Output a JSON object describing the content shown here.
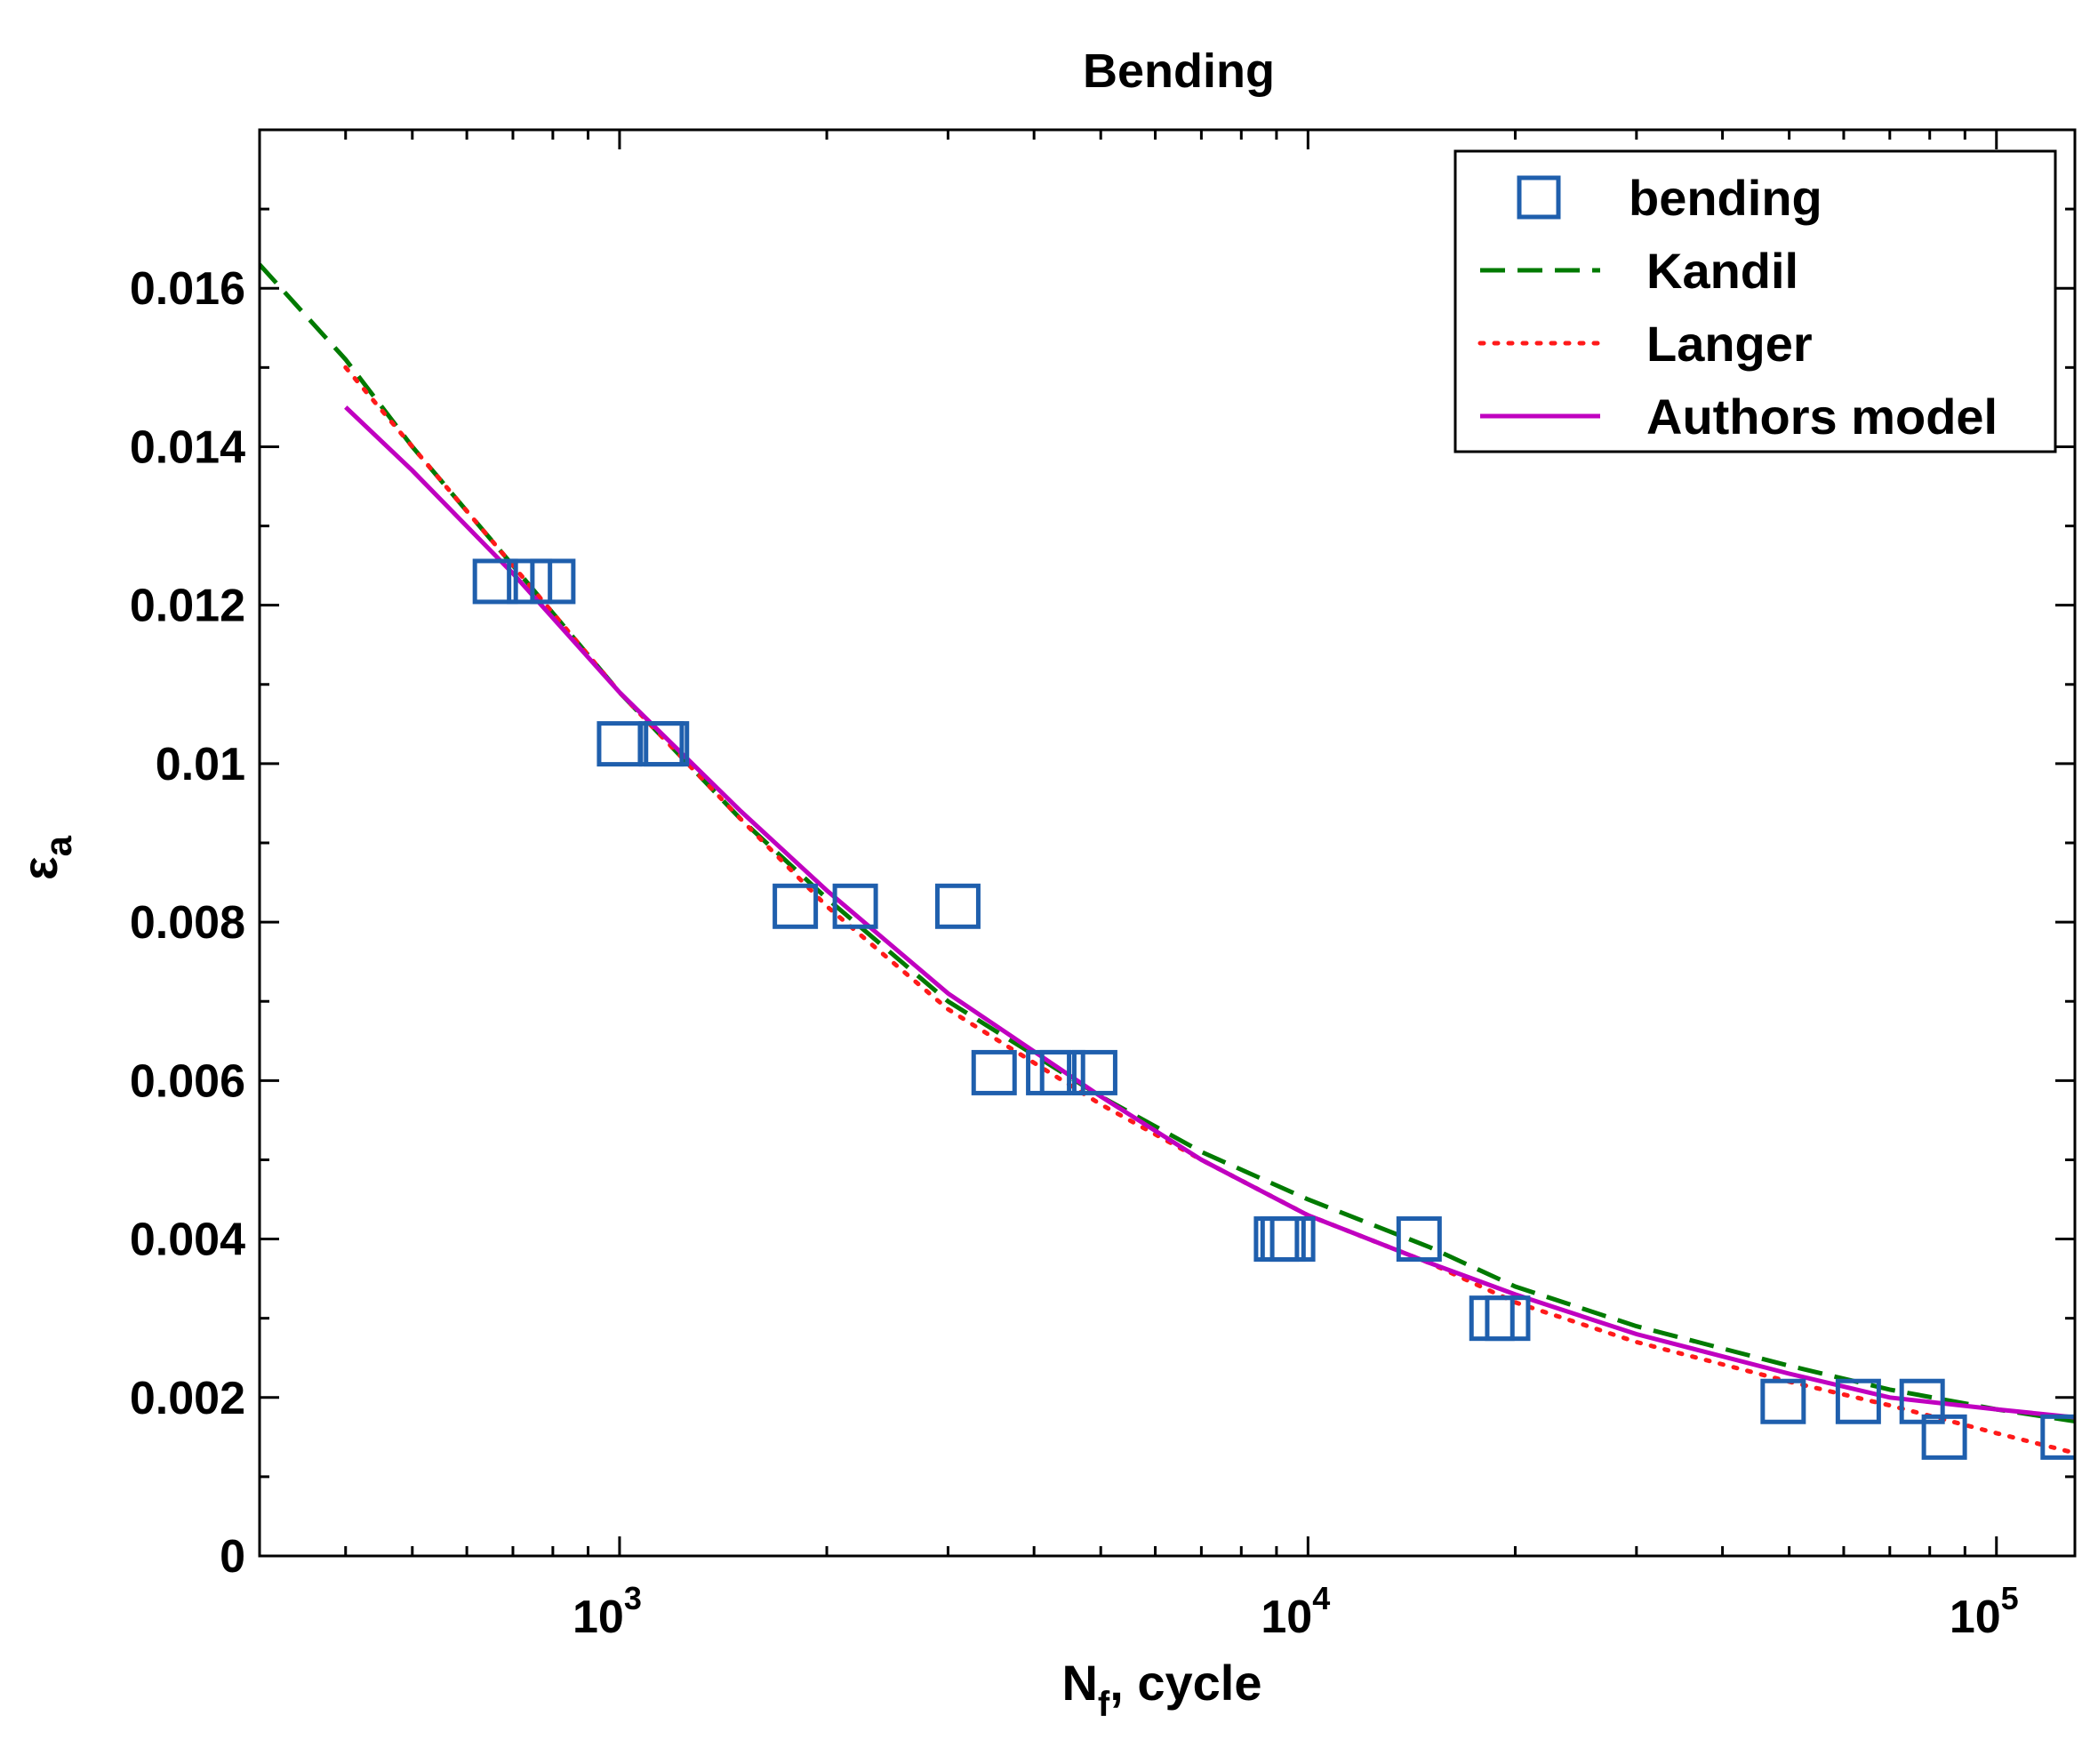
{
  "chart_data": {
    "type": "scatter",
    "title": "Bending",
    "xlabel": "N",
    "xlabel_sub": "f",
    "xlabel_rest": ", cycle",
    "ylabel": "ε",
    "ylabel_sub": "a",
    "xscale": "log",
    "xlim": [
      300,
      130000
    ],
    "ylim": [
      0,
      0.018
    ],
    "x_ticks": [
      {
        "value": 1000,
        "base": "10",
        "exp": "3"
      },
      {
        "value": 10000,
        "base": "10",
        "exp": "4"
      },
      {
        "value": 100000,
        "base": "10",
        "exp": "5"
      }
    ],
    "y_ticks": [
      {
        "value": 0,
        "label": "0"
      },
      {
        "value": 0.002,
        "label": "0.002"
      },
      {
        "value": 0.004,
        "label": "0.004"
      },
      {
        "value": 0.006,
        "label": "0.006"
      },
      {
        "value": 0.008,
        "label": "0.008"
      },
      {
        "value": 0.01,
        "label": "0.01"
      },
      {
        "value": 0.012,
        "label": "0.012"
      },
      {
        "value": 0.014,
        "label": "0.014"
      },
      {
        "value": 0.016,
        "label": "0.016"
      }
    ],
    "legend_position": "top-right",
    "series": [
      {
        "name": "bending",
        "kind": "marker",
        "marker": "square",
        "color": "#1f5fad",
        "points": [
          {
            "x": 660,
            "y": 0.0123
          },
          {
            "x": 740,
            "y": 0.0123
          },
          {
            "x": 800,
            "y": 0.0123
          },
          {
            "x": 1000,
            "y": 0.01025
          },
          {
            "x": 1150,
            "y": 0.01025
          },
          {
            "x": 1170,
            "y": 0.01025
          },
          {
            "x": 1800,
            "y": 0.0082
          },
          {
            "x": 2200,
            "y": 0.0082
          },
          {
            "x": 3100,
            "y": 0.0082
          },
          {
            "x": 3500,
            "y": 0.0061
          },
          {
            "x": 4200,
            "y": 0.0061
          },
          {
            "x": 4400,
            "y": 0.0061
          },
          {
            "x": 4900,
            "y": 0.0061
          },
          {
            "x": 9000,
            "y": 0.004
          },
          {
            "x": 9200,
            "y": 0.004
          },
          {
            "x": 9500,
            "y": 0.004
          },
          {
            "x": 14500,
            "y": 0.004
          },
          {
            "x": 18500,
            "y": 0.003
          },
          {
            "x": 19500,
            "y": 0.003
          },
          {
            "x": 49000,
            "y": 0.00195
          },
          {
            "x": 63000,
            "y": 0.00195
          },
          {
            "x": 78000,
            "y": 0.00195
          },
          {
            "x": 84000,
            "y": 0.0015
          },
          {
            "x": 125000,
            "y": 0.0015
          }
        ]
      },
      {
        "name": "Kandil",
        "kind": "line",
        "dash": "dashed",
        "color": "#007a00",
        "points": [
          {
            "x": 300,
            "y": 0.0163
          },
          {
            "x": 400,
            "y": 0.0151
          },
          {
            "x": 500,
            "y": 0.014
          },
          {
            "x": 700,
            "y": 0.0125
          },
          {
            "x": 1000,
            "y": 0.0109
          },
          {
            "x": 1500,
            "y": 0.0093
          },
          {
            "x": 2000,
            "y": 0.0083
          },
          {
            "x": 3000,
            "y": 0.007
          },
          {
            "x": 5000,
            "y": 0.0058
          },
          {
            "x": 7000,
            "y": 0.0051
          },
          {
            "x": 10000,
            "y": 0.0045
          },
          {
            "x": 15000,
            "y": 0.0039
          },
          {
            "x": 20000,
            "y": 0.0034
          },
          {
            "x": 30000,
            "y": 0.0029
          },
          {
            "x": 50000,
            "y": 0.0024
          },
          {
            "x": 70000,
            "y": 0.0021
          },
          {
            "x": 100000,
            "y": 0.00185
          },
          {
            "x": 130000,
            "y": 0.0017
          }
        ]
      },
      {
        "name": "Langer",
        "kind": "line",
        "dash": "dotted",
        "color": "#ff1a1a",
        "points": [
          {
            "x": 400,
            "y": 0.015
          },
          {
            "x": 500,
            "y": 0.014
          },
          {
            "x": 700,
            "y": 0.0125
          },
          {
            "x": 1000,
            "y": 0.0109
          },
          {
            "x": 1500,
            "y": 0.0093
          },
          {
            "x": 2000,
            "y": 0.0082
          },
          {
            "x": 3000,
            "y": 0.0069
          },
          {
            "x": 5000,
            "y": 0.0057
          },
          {
            "x": 7000,
            "y": 0.005
          },
          {
            "x": 10000,
            "y": 0.0043
          },
          {
            "x": 15000,
            "y": 0.0037
          },
          {
            "x": 20000,
            "y": 0.0032
          },
          {
            "x": 30000,
            "y": 0.0027
          },
          {
            "x": 50000,
            "y": 0.0022
          },
          {
            "x": 70000,
            "y": 0.0019
          },
          {
            "x": 100000,
            "y": 0.00155
          },
          {
            "x": 130000,
            "y": 0.0013
          }
        ]
      },
      {
        "name": "Authors model",
        "kind": "line",
        "dash": "solid",
        "color": "#c000c0",
        "points": [
          {
            "x": 400,
            "y": 0.0145
          },
          {
            "x": 500,
            "y": 0.0137
          },
          {
            "x": 700,
            "y": 0.0124
          },
          {
            "x": 1000,
            "y": 0.0109
          },
          {
            "x": 1500,
            "y": 0.0094
          },
          {
            "x": 2000,
            "y": 0.0084
          },
          {
            "x": 3000,
            "y": 0.0071
          },
          {
            "x": 5000,
            "y": 0.0058
          },
          {
            "x": 7000,
            "y": 0.005
          },
          {
            "x": 10000,
            "y": 0.0043
          },
          {
            "x": 15000,
            "y": 0.0037
          },
          {
            "x": 20000,
            "y": 0.0033
          },
          {
            "x": 30000,
            "y": 0.0028
          },
          {
            "x": 50000,
            "y": 0.0023
          },
          {
            "x": 70000,
            "y": 0.002
          },
          {
            "x": 100000,
            "y": 0.00185
          },
          {
            "x": 130000,
            "y": 0.00175
          }
        ]
      }
    ]
  }
}
